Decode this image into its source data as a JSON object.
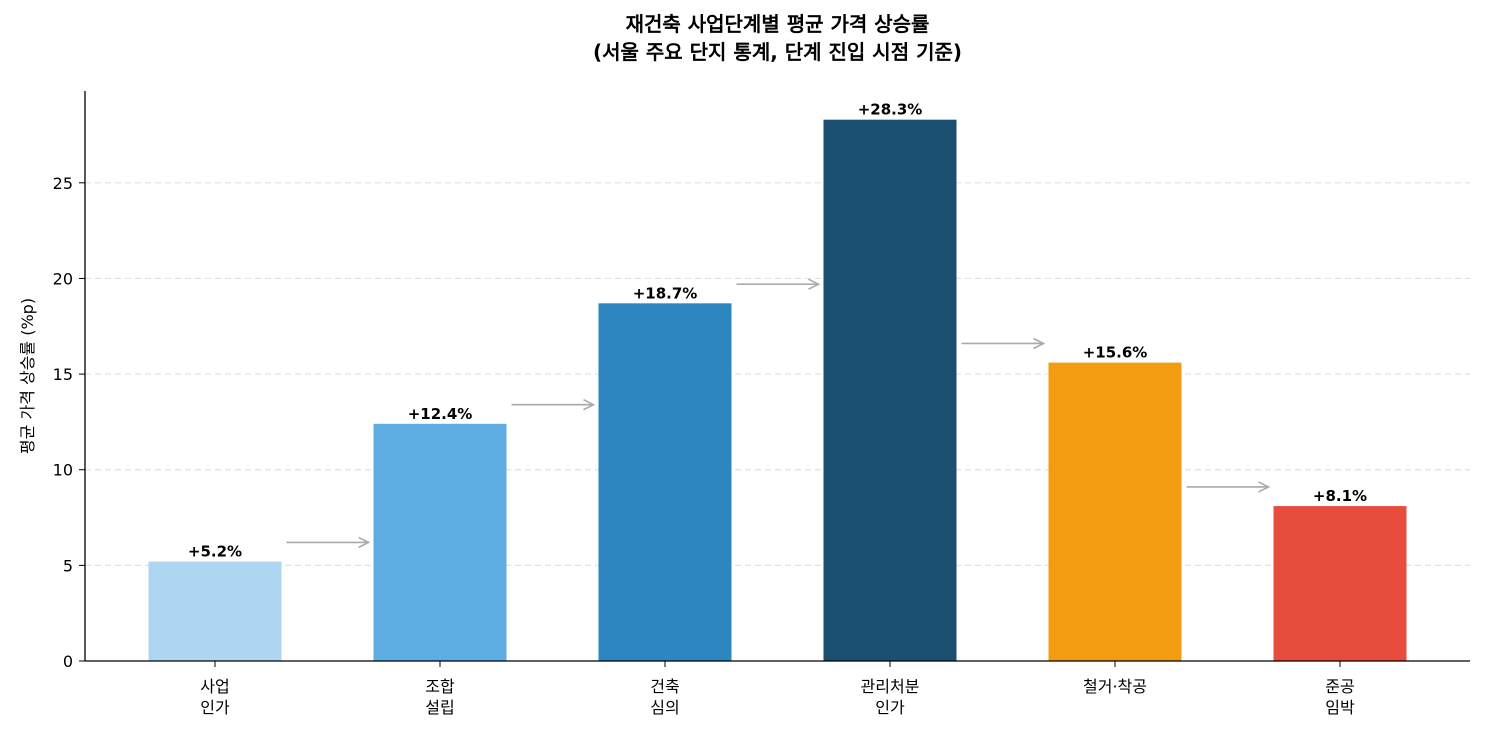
{
  "chart_data": {
    "type": "bar",
    "title_line1": "재건축 사업단계별 평균 가격 상승률",
    "title_line2": "(서울 주요 단지 통계, 단계 진입 시점 기준)",
    "xlabel": "",
    "ylabel": "평균 가격 상승률 (%p)",
    "ylim": [
      0,
      29.8
    ],
    "yticks": [
      "0",
      "5",
      "10",
      "15",
      "20",
      "25"
    ],
    "grid": "y-dashed",
    "categories": [
      [
        "사업",
        "인가"
      ],
      [
        "조합",
        "설립"
      ],
      [
        "건축",
        "심의"
      ],
      [
        "관리처분",
        "인가"
      ],
      [
        "철거·착공"
      ],
      [
        "준공",
        "임박"
      ]
    ],
    "values": [
      5.2,
      12.4,
      18.7,
      28.3,
      15.6,
      8.1
    ],
    "value_labels": [
      "+5.2%",
      "+12.4%",
      "+18.7%",
      "+28.3%",
      "+15.6%",
      "+8.1%"
    ],
    "colors": [
      "#aed6f1",
      "#5dade2",
      "#2e86c1",
      "#1b4f72",
      "#f39c12",
      "#e74c3c"
    ],
    "arrows": "between-consecutive-bars"
  }
}
